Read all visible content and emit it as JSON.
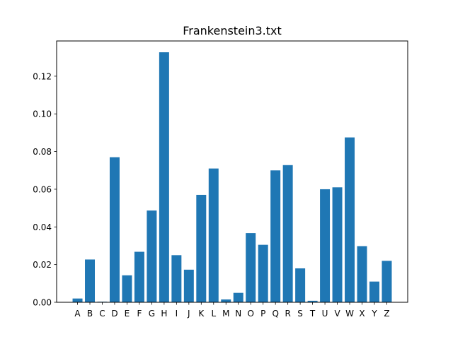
{
  "chart_data": {
    "type": "bar",
    "title": "Frankenstein3.txt",
    "xlabel": "",
    "ylabel": "",
    "categories": [
      "A",
      "B",
      "C",
      "D",
      "E",
      "F",
      "G",
      "H",
      "I",
      "J",
      "K",
      "L",
      "M",
      "N",
      "O",
      "P",
      "Q",
      "R",
      "S",
      "T",
      "U",
      "V",
      "W",
      "X",
      "Y",
      "Z"
    ],
    "values": [
      0.002,
      0.0227,
      0.0003,
      0.077,
      0.0143,
      0.0268,
      0.0487,
      0.1327,
      0.025,
      0.0173,
      0.057,
      0.071,
      0.0015,
      0.005,
      0.0367,
      0.0305,
      0.07,
      0.0728,
      0.018,
      0.0008,
      0.06,
      0.061,
      0.0875,
      0.0298,
      0.011,
      0.022
    ],
    "ylim": [
      0,
      0.1387
    ],
    "yticks": [
      0.0,
      0.02,
      0.04,
      0.06,
      0.08,
      0.1,
      0.12
    ],
    "ytick_labels": [
      "0.00",
      "0.02",
      "0.04",
      "0.06",
      "0.08",
      "0.10",
      "0.12"
    ],
    "bar_color": "#1f77b4",
    "grid": false,
    "legend": "none"
  }
}
